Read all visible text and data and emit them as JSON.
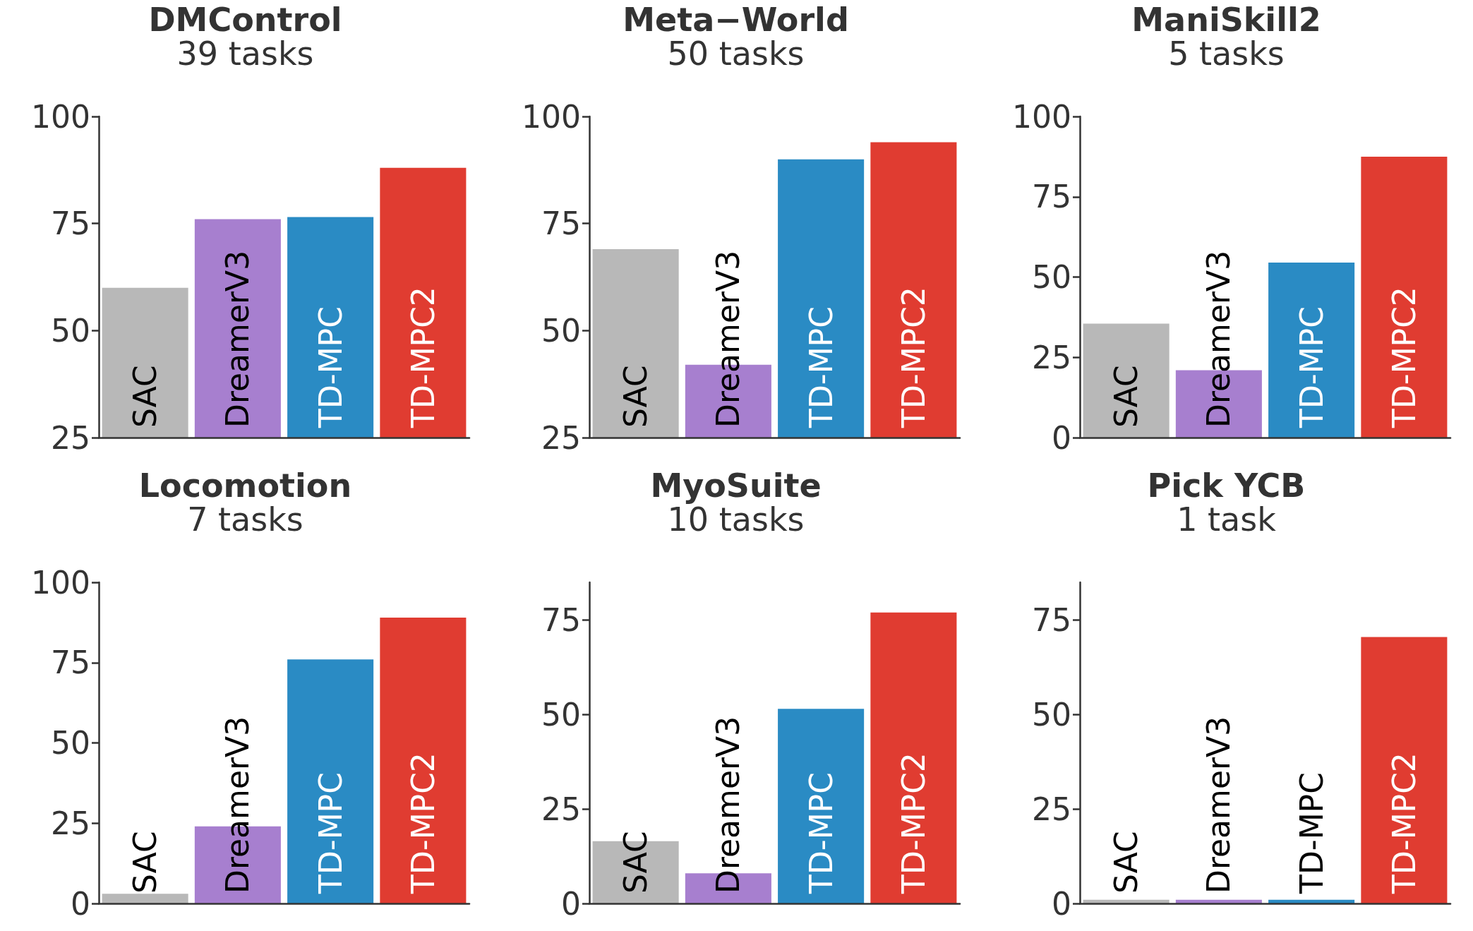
{
  "chart_data": [
    {
      "type": "bar",
      "title": "DMControl",
      "subtitle": "39 tasks",
      "categories": [
        "SAC",
        "DreamerV3",
        "TD-MPC",
        "TD-MPC2"
      ],
      "colors": [
        "#b8b8b8",
        "#a77fcf",
        "#2a8bc4",
        "#e03c31"
      ],
      "values": [
        60,
        76,
        76.5,
        88
      ],
      "ylim": [
        25,
        100
      ],
      "yticks": [
        25,
        50,
        75,
        100
      ]
    },
    {
      "type": "bar",
      "title": "Meta−World",
      "subtitle": "50 tasks",
      "categories": [
        "SAC",
        "DreamerV3",
        "TD-MPC",
        "TD-MPC2"
      ],
      "colors": [
        "#b8b8b8",
        "#a77fcf",
        "#2a8bc4",
        "#e03c31"
      ],
      "values": [
        69,
        42,
        90,
        94
      ],
      "ylim": [
        25,
        100
      ],
      "yticks": [
        25,
        50,
        75,
        100
      ]
    },
    {
      "type": "bar",
      "title": "ManiSkill2",
      "subtitle": "5 tasks",
      "categories": [
        "SAC",
        "DreamerV3",
        "TD-MPC",
        "TD-MPC2"
      ],
      "colors": [
        "#b8b8b8",
        "#a77fcf",
        "#2a8bc4",
        "#e03c31"
      ],
      "values": [
        35.5,
        21,
        54.5,
        87.5
      ],
      "ylim": [
        0,
        100
      ],
      "yticks": [
        0,
        25,
        50,
        75,
        100
      ]
    },
    {
      "type": "bar",
      "title": "Locomotion",
      "subtitle": "7 tasks",
      "categories": [
        "SAC",
        "DreamerV3",
        "TD-MPC",
        "TD-MPC2"
      ],
      "colors": [
        "#b8b8b8",
        "#a77fcf",
        "#2a8bc4",
        "#e03c31"
      ],
      "values": [
        3,
        24,
        76,
        89
      ],
      "ylim": [
        0,
        100
      ],
      "yticks": [
        0,
        25,
        50,
        75,
        100
      ]
    },
    {
      "type": "bar",
      "title": "MyoSuite",
      "subtitle": "10 tasks",
      "categories": [
        "SAC",
        "DreamerV3",
        "TD-MPC",
        "TD-MPC2"
      ],
      "colors": [
        "#b8b8b8",
        "#a77fcf",
        "#2a8bc4",
        "#e03c31"
      ],
      "values": [
        16.5,
        8,
        51.5,
        77
      ],
      "ylim": [
        0,
        85
      ],
      "yticks": [
        0,
        25,
        50,
        75
      ]
    },
    {
      "type": "bar",
      "title": "Pick YCB",
      "subtitle": "1 task",
      "categories": [
        "SAC",
        "DreamerV3",
        "TD-MPC",
        "TD-MPC2"
      ],
      "colors": [
        "#b8b8b8",
        "#a77fcf",
        "#2a8bc4",
        "#e03c31"
      ],
      "values": [
        1,
        1,
        1,
        70.5
      ],
      "ylim": [
        0,
        85
      ],
      "yticks": [
        0,
        25,
        50,
        75
      ]
    }
  ]
}
